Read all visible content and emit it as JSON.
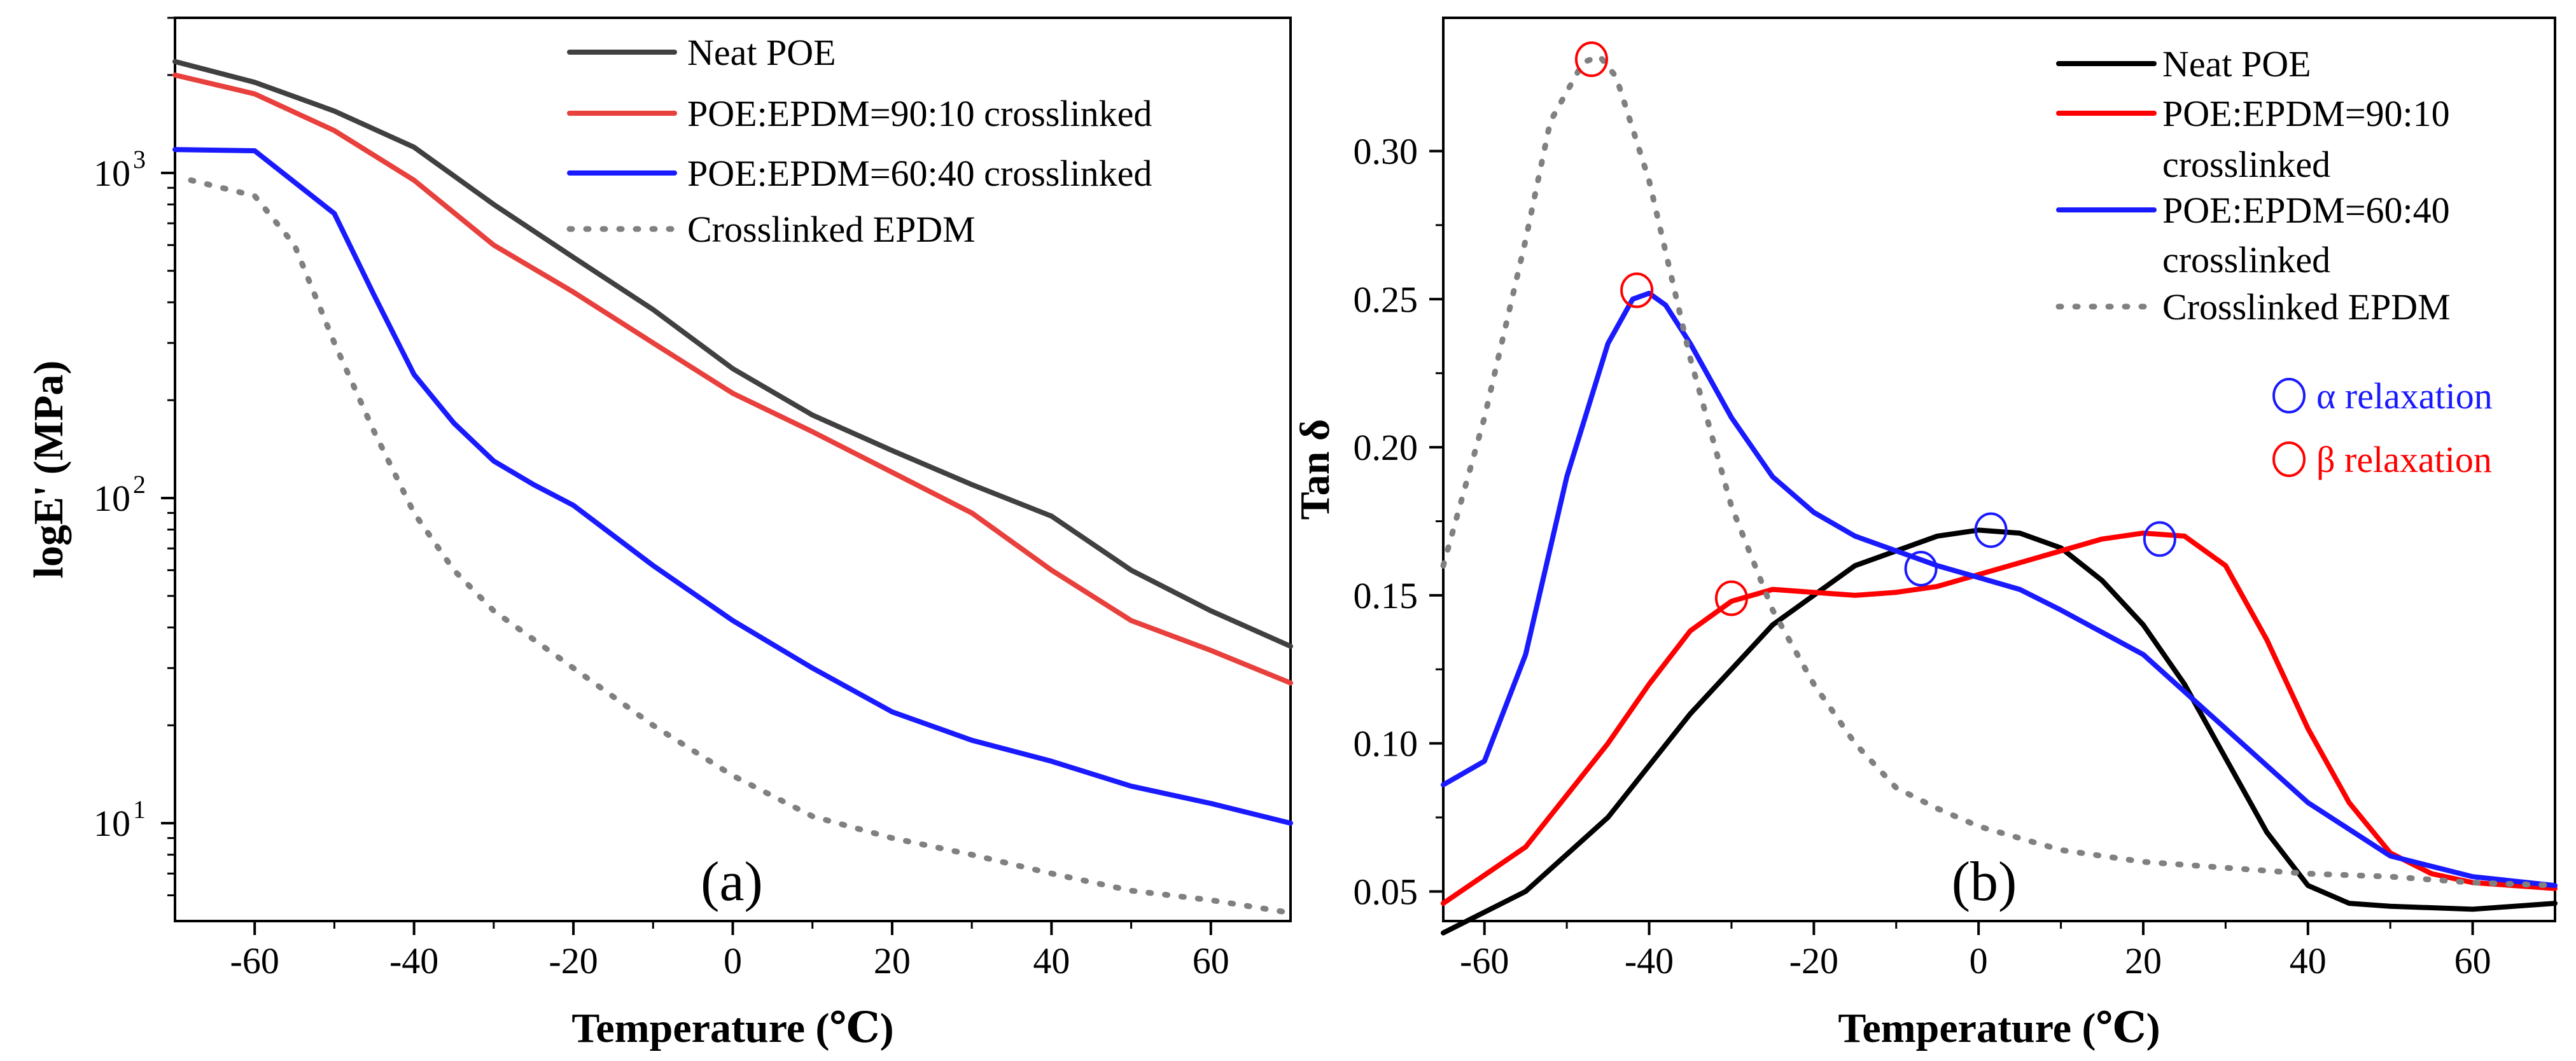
{
  "chart_data": [
    {
      "id": "a",
      "type": "line",
      "panel_label": "(a)",
      "xlabel": "Temperature (℃)",
      "ylabel": "logE' (MPa)",
      "yscale": "log",
      "xlim": [
        -70,
        70
      ],
      "ylim": [
        5,
        3000
      ],
      "xticks": [
        -60,
        -40,
        -20,
        0,
        20,
        40,
        60
      ],
      "xtick_labels": [
        "-60",
        "-40",
        "-20",
        "0",
        "20",
        "40",
        "60"
      ],
      "yticks": [
        10,
        100,
        1000
      ],
      "ytick_base": [
        "10",
        "10",
        "10"
      ],
      "ytick_exp": [
        "1",
        "2",
        "3"
      ],
      "legend_position": "top-right",
      "series": [
        {
          "name": "Neat POE",
          "color": "#404040",
          "style": "solid",
          "x": [
            -70,
            -60,
            -50,
            -40,
            -30,
            -20,
            -10,
            0,
            10,
            20,
            30,
            40,
            50,
            60,
            70
          ],
          "y": [
            2200,
            1900,
            1550,
            1200,
            800,
            550,
            380,
            250,
            180,
            140,
            110,
            88,
            60,
            45,
            35
          ]
        },
        {
          "name": "POE:EPDM=90:10 crosslinked",
          "color": "#e8403c",
          "style": "solid",
          "x": [
            -70,
            -60,
            -50,
            -40,
            -30,
            -20,
            -10,
            0,
            10,
            20,
            30,
            40,
            50,
            60,
            70
          ],
          "y": [
            2000,
            1750,
            1350,
            950,
            600,
            430,
            300,
            210,
            160,
            120,
            90,
            60,
            42,
            34,
            27
          ]
        },
        {
          "name": "POE:EPDM=60:40 crosslinked",
          "color": "#1a1aff",
          "style": "solid",
          "x": [
            -70,
            -60,
            -50,
            -45,
            -40,
            -35,
            -30,
            -25,
            -20,
            -10,
            0,
            10,
            20,
            30,
            40,
            50,
            60,
            70
          ],
          "y": [
            1180,
            1170,
            750,
            420,
            240,
            170,
            130,
            110,
            95,
            62,
            42,
            30,
            22,
            18,
            15.5,
            13,
            11.5,
            10
          ]
        },
        {
          "name": "Crosslinked EPDM",
          "color": "#808080",
          "style": "dotted",
          "x": [
            -68,
            -60,
            -55,
            -50,
            -45,
            -40,
            -35,
            -30,
            -20,
            -10,
            0,
            10,
            20,
            30,
            40,
            50,
            60,
            70
          ],
          "y": [
            950,
            850,
            600,
            300,
            160,
            90,
            60,
            45,
            30,
            20,
            14,
            10.5,
            9,
            8,
            7,
            6.2,
            5.8,
            5.3
          ]
        }
      ]
    },
    {
      "id": "b",
      "type": "line",
      "panel_label": "(b)",
      "xlabel": "Temperature (℃)",
      "ylabel": "Tan δ",
      "xlim": [
        -65,
        70
      ],
      "ylim": [
        0.04,
        0.345
      ],
      "xticks": [
        -60,
        -40,
        -20,
        0,
        20,
        40,
        60
      ],
      "xtick_labels": [
        "-60",
        "-40",
        "-20",
        "0",
        "20",
        "40",
        "60"
      ],
      "yticks": [
        0.05,
        0.1,
        0.15,
        0.2,
        0.25,
        0.3
      ],
      "ytick_labels": [
        "0.05",
        "0.10",
        "0.15",
        "0.20",
        "0.25",
        "0.30"
      ],
      "legend_position": "top-right",
      "series": [
        {
          "name": "Neat POE",
          "legend_lines": [
            "Neat POE"
          ],
          "color": "#000000",
          "style": "solid",
          "x": [
            -65,
            -55,
            -45,
            -35,
            -25,
            -15,
            -5,
            0,
            5,
            10,
            15,
            20,
            25,
            30,
            35,
            40,
            45,
            50,
            60,
            70
          ],
          "y": [
            0.036,
            0.05,
            0.075,
            0.11,
            0.14,
            0.16,
            0.17,
            0.172,
            0.171,
            0.166,
            0.155,
            0.14,
            0.12,
            0.095,
            0.07,
            0.052,
            0.046,
            0.045,
            0.044,
            0.046
          ]
        },
        {
          "name": "POE:EPDM=90:10 crosslinked",
          "legend_lines": [
            "POE:EPDM=90:10",
            "crosslinked"
          ],
          "color": "#ff0000",
          "style": "solid",
          "x": [
            -65,
            -55,
            -45,
            -40,
            -35,
            -30,
            -25,
            -20,
            -15,
            -10,
            -5,
            0,
            5,
            10,
            15,
            20,
            25,
            30,
            35,
            40,
            45,
            50,
            55,
            60,
            70
          ],
          "y": [
            0.046,
            0.065,
            0.1,
            0.12,
            0.138,
            0.148,
            0.152,
            0.151,
            0.15,
            0.151,
            0.153,
            0.157,
            0.161,
            0.165,
            0.169,
            0.171,
            0.17,
            0.16,
            0.135,
            0.105,
            0.08,
            0.063,
            0.056,
            0.053,
            0.051
          ]
        },
        {
          "name": "POE:EPDM=60:40 crosslinked",
          "legend_lines": [
            "POE:EPDM=60:40",
            "crosslinked"
          ],
          "color": "#1a1aff",
          "style": "solid",
          "x": [
            -65,
            -60,
            -55,
            -50,
            -45,
            -42,
            -40,
            -38,
            -35,
            -30,
            -25,
            -20,
            -15,
            -10,
            -5,
            0,
            5,
            10,
            20,
            30,
            40,
            50,
            60,
            70
          ],
          "y": [
            0.086,
            0.094,
            0.13,
            0.19,
            0.235,
            0.25,
            0.252,
            0.248,
            0.235,
            0.21,
            0.19,
            0.178,
            0.17,
            0.165,
            0.16,
            0.156,
            0.152,
            0.145,
            0.13,
            0.105,
            0.08,
            0.062,
            0.055,
            0.052
          ]
        },
        {
          "name": "Crosslinked EPDM",
          "legend_lines": [
            "Crosslinked EPDM"
          ],
          "color": "#808080",
          "style": "dotted",
          "x": [
            -65,
            -60,
            -55,
            -52,
            -48,
            -46,
            -44,
            -40,
            -35,
            -30,
            -25,
            -20,
            -15,
            -10,
            -5,
            0,
            10,
            20,
            30,
            40,
            50,
            60,
            70
          ],
          "y": [
            0.16,
            0.21,
            0.27,
            0.31,
            0.33,
            0.332,
            0.325,
            0.29,
            0.23,
            0.18,
            0.145,
            0.12,
            0.1,
            0.085,
            0.078,
            0.072,
            0.064,
            0.06,
            0.058,
            0.056,
            0.055,
            0.053,
            0.052
          ]
        }
      ],
      "markers": [
        {
          "kind": "beta",
          "color": "#ff0000",
          "x": -47,
          "y": 0.331
        },
        {
          "kind": "beta",
          "color": "#ff0000",
          "x": -41.5,
          "y": 0.253
        },
        {
          "kind": "beta",
          "color": "#ff0000",
          "x": -30,
          "y": 0.149
        },
        {
          "kind": "alpha",
          "color": "#1a1aff",
          "x": -7,
          "y": 0.159
        },
        {
          "kind": "alpha",
          "color": "#1a1aff",
          "x": 1.5,
          "y": 0.172
        },
        {
          "kind": "alpha",
          "color": "#1a1aff",
          "x": 22,
          "y": 0.169
        }
      ],
      "annotation_legend": [
        {
          "symbol": "○",
          "text": "α relaxation",
          "color": "#1a1aff"
        },
        {
          "symbol": "○",
          "text": "β relaxation",
          "color": "#ff0000"
        }
      ]
    }
  ]
}
